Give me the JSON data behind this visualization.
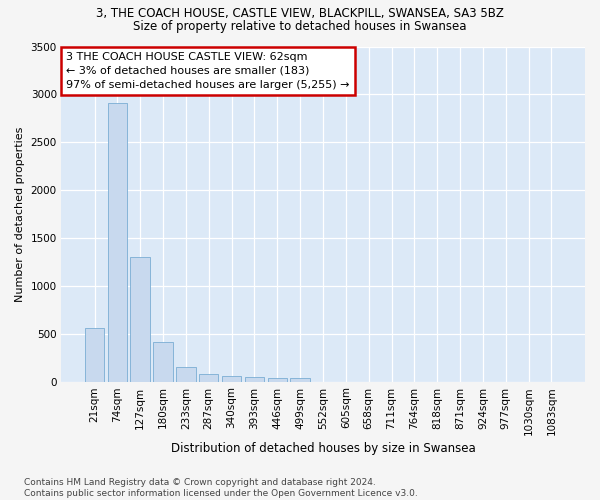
{
  "title": "3, THE COACH HOUSE, CASTLE VIEW, BLACKPILL, SWANSEA, SA3 5BZ",
  "subtitle": "Size of property relative to detached houses in Swansea",
  "xlabel": "Distribution of detached houses by size in Swansea",
  "ylabel": "Number of detached properties",
  "bar_color": "#c8d9ee",
  "bar_edge_color": "#7aadd4",
  "axes_bg_color": "#dce9f7",
  "fig_bg_color": "#f5f5f5",
  "grid_color": "#ffffff",
  "annotation_text": "3 THE COACH HOUSE CASTLE VIEW: 62sqm\n← 3% of detached houses are smaller (183)\n97% of semi-detached houses are larger (5,255) →",
  "annotation_box_facecolor": "#ffffff",
  "annotation_border_color": "#cc0000",
  "footer_text": "Contains HM Land Registry data © Crown copyright and database right 2024.\nContains public sector information licensed under the Open Government Licence v3.0.",
  "categories": [
    "21sqm",
    "74sqm",
    "127sqm",
    "180sqm",
    "233sqm",
    "287sqm",
    "340sqm",
    "393sqm",
    "446sqm",
    "499sqm",
    "552sqm",
    "605sqm",
    "658sqm",
    "711sqm",
    "764sqm",
    "818sqm",
    "871sqm",
    "924sqm",
    "977sqm",
    "1030sqm",
    "1083sqm"
  ],
  "values": [
    570,
    2910,
    1310,
    415,
    155,
    88,
    63,
    55,
    46,
    43,
    5,
    0,
    0,
    0,
    0,
    0,
    0,
    0,
    0,
    0,
    0
  ],
  "ylim": [
    0,
    3500
  ],
  "yticks": [
    0,
    500,
    1000,
    1500,
    2000,
    2500,
    3000,
    3500
  ],
  "title_fontsize": 8.5,
  "subtitle_fontsize": 8.5,
  "ylabel_fontsize": 8.0,
  "xlabel_fontsize": 8.5,
  "tick_fontsize": 7.5,
  "annotation_fontsize": 8.0,
  "footer_fontsize": 6.5
}
